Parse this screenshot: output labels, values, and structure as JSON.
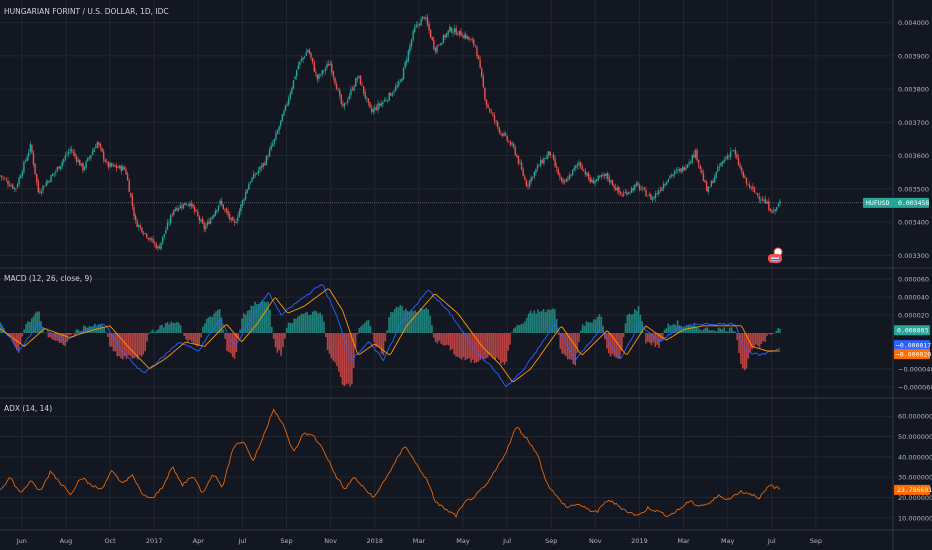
{
  "colors": {
    "background": "#131722",
    "grid": "#22262f",
    "separator": "#363a45",
    "up": "#26a69a",
    "down": "#ef5350",
    "macd": "#2962ff",
    "signal": "#ff9800",
    "hist_up": "#26a69a",
    "hist_down": "#ef5350",
    "adx": "#ff6d00",
    "price_tag": "#26a69a",
    "macd_tag": "#2962ff",
    "signal_tag": "#ff6d00",
    "hist_tag": "#26a69a",
    "adx_tag": "#ff6d00"
  },
  "header": {
    "title": "HUNGARIAN FORINT / U.S. DOLLAR, 1D, IDC"
  },
  "chart_data": [
    {
      "type": "candlestick",
      "title": "HUNGARIAN FORINT / U.S. DOLLAR, 1D, IDC",
      "x_labels": [
        "Jun",
        "Aug",
        "Oct",
        "2017",
        "Apr",
        "Jul",
        "Sep",
        "Nov",
        "2018",
        "Mar",
        "May",
        "Jul",
        "Sep",
        "Nov",
        "2019",
        "Mar",
        "May",
        "Jul",
        "Sep"
      ],
      "ylim": [
        0.00328,
        0.00405
      ],
      "y_ticks": [
        0.004,
        0.0039,
        0.0038,
        0.0037,
        0.0036,
        0.0035,
        0.0034,
        0.0033
      ],
      "y_tick_labels": [
        "0.004000",
        "0.003900",
        "0.003800",
        "0.003700",
        "0.003600",
        "0.003500",
        "0.003400",
        "0.003300"
      ],
      "last_label": "HUFUSD",
      "last_value": 0.003458,
      "last_value_text": "0.003458",
      "close_keypoints": [
        [
          0,
          0.00354
        ],
        [
          1.2,
          0.0035
        ],
        [
          2.4,
          0.00363
        ],
        [
          3,
          0.00349
        ],
        [
          4.3,
          0.00355
        ],
        [
          5.5,
          0.00362
        ],
        [
          6.5,
          0.00356
        ],
        [
          7.6,
          0.00364
        ],
        [
          8.4,
          0.00357
        ],
        [
          9.8,
          0.00356
        ],
        [
          10.6,
          0.0034
        ],
        [
          12.4,
          0.00332
        ],
        [
          13.6,
          0.00344
        ],
        [
          14.8,
          0.00346
        ],
        [
          16,
          0.00338
        ],
        [
          17.2,
          0.00346
        ],
        [
          18.3,
          0.00339
        ],
        [
          19.5,
          0.00352
        ],
        [
          20.7,
          0.00358
        ],
        [
          21.5,
          0.00365
        ],
        [
          22.3,
          0.00374
        ],
        [
          23.3,
          0.00387
        ],
        [
          24.1,
          0.00392
        ],
        [
          24.8,
          0.00383
        ],
        [
          25.8,
          0.00388
        ],
        [
          26.8,
          0.00374
        ],
        [
          28,
          0.00384
        ],
        [
          29,
          0.00373
        ],
        [
          30.2,
          0.00377
        ],
        [
          31.3,
          0.00382
        ],
        [
          32.4,
          0.00398
        ],
        [
          33.2,
          0.00402
        ],
        [
          34,
          0.00392
        ],
        [
          35.2,
          0.00398
        ],
        [
          36.4,
          0.00396
        ],
        [
          37.2,
          0.00393
        ],
        [
          38,
          0.00376
        ],
        [
          39,
          0.00368
        ],
        [
          40.2,
          0.00362
        ],
        [
          41.2,
          0.00351
        ],
        [
          42.1,
          0.00357
        ],
        [
          43,
          0.00361
        ],
        [
          44,
          0.00351
        ],
        [
          45.3,
          0.00358
        ],
        [
          46.2,
          0.00352
        ],
        [
          47.4,
          0.00354
        ],
        [
          48.6,
          0.00348
        ],
        [
          49.8,
          0.00351
        ],
        [
          51,
          0.00347
        ],
        [
          52.4,
          0.00354
        ],
        [
          53.4,
          0.00356
        ],
        [
          54.4,
          0.00361
        ],
        [
          55.3,
          0.00349
        ],
        [
          56.3,
          0.00357
        ],
        [
          57.3,
          0.00362
        ],
        [
          58.3,
          0.00352
        ],
        [
          59,
          0.00349
        ],
        [
          59.6,
          0.00347
        ],
        [
          60.5,
          0.00343
        ],
        [
          61,
          0.00346
        ]
      ]
    },
    {
      "type": "line",
      "title": "MACD (12, 26, close, 9)",
      "ylim": [
        -6.8e-05,
        6.8e-05
      ],
      "y_ticks": [
        6e-05,
        4e-05,
        2e-05,
        -4e-05,
        -6e-05
      ],
      "y_tick_labels": [
        "0.000060",
        "0.000040",
        "0.000020",
        "−0.000040",
        "−0.000060"
      ],
      "series_macd_keypoints": [
        [
          0,
          1e-05
        ],
        [
          1.5,
          -2e-05
        ],
        [
          3,
          1e-05
        ],
        [
          5,
          -1e-05
        ],
        [
          6.8,
          5e-06
        ],
        [
          8.2,
          1e-05
        ],
        [
          9.5,
          -2e-05
        ],
        [
          11.2,
          -4.5e-05
        ],
        [
          12.5,
          -3e-05
        ],
        [
          14,
          -1e-05
        ],
        [
          15.5,
          -2e-05
        ],
        [
          17.2,
          1.5e-05
        ],
        [
          18.4,
          -1.5e-05
        ],
        [
          19.6,
          1.5e-05
        ],
        [
          21,
          4.5e-05
        ],
        [
          22,
          2e-05
        ],
        [
          23.3,
          3.5e-05
        ],
        [
          25.2,
          5.5e-05
        ],
        [
          26.3,
          2e-05
        ],
        [
          27.5,
          -3e-05
        ],
        [
          28.8,
          -1e-05
        ],
        [
          30,
          -3e-05
        ],
        [
          31.3,
          1e-05
        ],
        [
          33.5,
          4.8e-05
        ],
        [
          35.3,
          2e-05
        ],
        [
          37.2,
          -2e-05
        ],
        [
          38.6,
          -4e-05
        ],
        [
          39.6,
          -6e-05
        ],
        [
          41,
          -4e-05
        ],
        [
          43.4,
          1e-05
        ],
        [
          45,
          -3e-05
        ],
        [
          47,
          5e-06
        ],
        [
          48.5,
          -3e-05
        ],
        [
          50,
          1e-05
        ],
        [
          51.6,
          -1e-05
        ],
        [
          53,
          5e-06
        ],
        [
          54.5,
          1e-05
        ],
        [
          56,
          1e-05
        ],
        [
          57.5,
          1e-05
        ],
        [
          58.3,
          -2e-05
        ],
        [
          59.5,
          -2.5e-05
        ],
        [
          61,
          -1.7e-05
        ]
      ],
      "series_signal_keypoints": [
        [
          0,
          5e-06
        ],
        [
          1.9,
          -1.5e-05
        ],
        [
          3.5,
          5e-06
        ],
        [
          5.4,
          -5e-06
        ],
        [
          7.2,
          3e-06
        ],
        [
          8.6,
          8e-06
        ],
        [
          10,
          -1.5e-05
        ],
        [
          11.7,
          -4e-05
        ],
        [
          13,
          -2.8e-05
        ],
        [
          14.5,
          -1e-05
        ],
        [
          16,
          -1.5e-05
        ],
        [
          17.7,
          1e-05
        ],
        [
          18.9,
          -1e-05
        ],
        [
          20.1,
          1e-05
        ],
        [
          21.5,
          4e-05
        ],
        [
          22.5,
          2.2e-05
        ],
        [
          23.8,
          3e-05
        ],
        [
          25.7,
          5e-05
        ],
        [
          26.8,
          2.5e-05
        ],
        [
          28,
          -2.5e-05
        ],
        [
          29.3,
          -1.2e-05
        ],
        [
          30.5,
          -2.5e-05
        ],
        [
          31.8,
          8e-06
        ],
        [
          34,
          4.4e-05
        ],
        [
          35.8,
          2.2e-05
        ],
        [
          37.7,
          -1.5e-05
        ],
        [
          39.1,
          -3.5e-05
        ],
        [
          40.1,
          -5.5e-05
        ],
        [
          41.5,
          -4e-05
        ],
        [
          43.9,
          8e-06
        ],
        [
          45.5,
          -2.5e-05
        ],
        [
          47.5,
          3e-06
        ],
        [
          49,
          -2.5e-05
        ],
        [
          50.5,
          8e-06
        ],
        [
          52.1,
          -8e-06
        ],
        [
          53.5,
          4e-06
        ],
        [
          55,
          8e-06
        ],
        [
          56.5,
          8e-06
        ],
        [
          58,
          8e-06
        ],
        [
          58.8,
          -1.5e-05
        ],
        [
          60,
          -2e-05
        ],
        [
          61,
          -2e-05
        ]
      ],
      "tags": {
        "histogram": "0.000003",
        "macd": "−0.000017",
        "signal": "−0.000020"
      }
    },
    {
      "type": "line",
      "title": "ADX (14, 14)",
      "ylim": [
        5,
        67
      ],
      "y_ticks": [
        60,
        50,
        40,
        30,
        20,
        10
      ],
      "y_tick_labels": [
        "60.000000",
        "50.000000",
        "40.000000",
        "30.000000",
        "20.000000",
        "10.000000"
      ],
      "keypoints": [
        [
          0,
          24
        ],
        [
          1,
          30
        ],
        [
          2,
          22
        ],
        [
          3,
          28
        ],
        [
          4,
          23
        ],
        [
          5,
          33
        ],
        [
          6,
          27
        ],
        [
          7,
          22
        ],
        [
          8,
          30
        ],
        [
          9,
          26
        ],
        [
          10,
          24
        ],
        [
          11,
          33
        ],
        [
          12,
          27
        ],
        [
          13,
          31
        ],
        [
          14,
          22
        ],
        [
          15,
          19
        ],
        [
          16,
          25
        ],
        [
          17,
          35
        ],
        [
          18,
          26
        ],
        [
          19,
          31
        ],
        [
          20,
          22
        ],
        [
          21,
          32
        ],
        [
          22,
          25
        ],
        [
          23,
          45
        ],
        [
          24,
          48
        ],
        [
          25,
          38
        ],
        [
          26,
          50
        ],
        [
          27,
          64
        ],
        [
          28,
          55
        ],
        [
          29,
          42
        ],
        [
          30,
          52
        ],
        [
          31,
          50
        ],
        [
          32,
          43
        ],
        [
          33,
          32
        ],
        [
          34,
          24
        ],
        [
          35,
          30
        ],
        [
          36,
          24
        ],
        [
          37,
          20
        ],
        [
          38,
          29
        ],
        [
          39,
          37
        ],
        [
          40,
          46
        ],
        [
          41,
          37
        ],
        [
          42,
          30
        ],
        [
          43,
          18
        ],
        [
          44,
          14
        ],
        [
          45,
          11
        ],
        [
          46,
          18
        ],
        [
          47,
          21
        ],
        [
          48,
          26
        ],
        [
          49,
          34
        ],
        [
          50,
          43
        ],
        [
          51,
          55
        ],
        [
          52,
          49
        ],
        [
          53,
          42
        ],
        [
          54,
          27
        ],
        [
          55,
          20
        ],
        [
          56,
          15
        ],
        [
          57,
          17
        ],
        [
          58,
          14
        ],
        [
          59,
          13
        ],
        [
          60,
          19
        ],
        [
          61,
          16
        ],
        [
          62,
          13
        ],
        [
          63,
          11
        ],
        [
          64,
          15
        ],
        [
          65,
          13
        ],
        [
          66,
          11
        ],
        [
          67,
          14
        ],
        [
          68,
          18
        ],
        [
          69,
          16
        ],
        [
          70,
          17
        ],
        [
          71,
          21
        ],
        [
          72,
          19
        ],
        [
          73,
          23
        ],
        [
          74,
          22
        ],
        [
          75,
          20
        ],
        [
          76,
          26
        ],
        [
          77,
          24
        ]
      ],
      "last_value_text": "23.786691"
    }
  ]
}
